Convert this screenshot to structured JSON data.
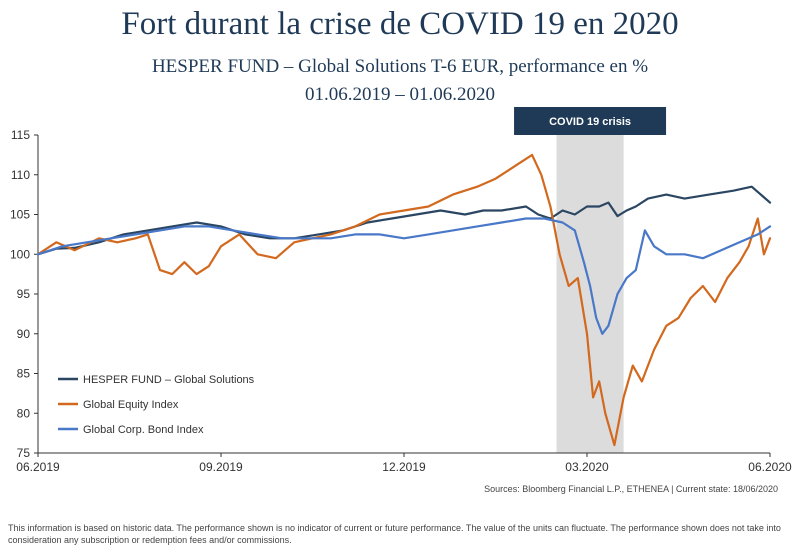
{
  "header": {
    "title": "Fort durant la crise de COVID 19 en 2020",
    "subtitle": "HESPER FUND – Global Solutions T-6 EUR, performance en %",
    "date_range": "01.06.2019 – 01.06.2020"
  },
  "footer": {
    "sources": "Sources: Bloomberg Financial L.P., ETHENEA | Current state: 18/06/2020",
    "disclaimer": "This information is based on historic data. The performance shown is no indicator of current or future performance. The value of the units can fluctuate. The performance shown does not take into consideration any subscription or redemption fees and/or commissions."
  },
  "chart_data": {
    "type": "line",
    "x_tick_labels": [
      "06.2019",
      "09.2019",
      "12.2019",
      "03.2020",
      "06.2020"
    ],
    "xlim": [
      0,
      12
    ],
    "ylim": [
      75,
      115
    ],
    "y_ticks": [
      75,
      80,
      85,
      90,
      95,
      100,
      105,
      110,
      115
    ],
    "grid": false,
    "legend_position": "bottom-left",
    "annotation": {
      "label": "COVID 19 crisis",
      "x_start": 8.5,
      "x_end": 9.6,
      "color": "#1f3a57",
      "band_color": "#dcdcdc"
    },
    "series": [
      {
        "name": "HESPER FUND – Global Solutions",
        "color": "#2a4662",
        "x": [
          0,
          0.3,
          0.6,
          1.0,
          1.4,
          1.8,
          2.2,
          2.6,
          3.0,
          3.4,
          3.8,
          4.2,
          4.6,
          5.0,
          5.4,
          5.8,
          6.2,
          6.6,
          7.0,
          7.3,
          7.6,
          8.0,
          8.2,
          8.4,
          8.6,
          8.8,
          9.0,
          9.2,
          9.35,
          9.5,
          9.65,
          9.8,
          10.0,
          10.3,
          10.6,
          11.0,
          11.4,
          11.7,
          11.85,
          12.0
        ],
        "values": [
          100,
          100.7,
          100.8,
          101.5,
          102.5,
          103.0,
          103.5,
          104.0,
          103.5,
          102.5,
          102.0,
          102.0,
          102.5,
          103.0,
          104.0,
          104.5,
          105.0,
          105.5,
          105.0,
          105.5,
          105.5,
          106.0,
          105.0,
          104.5,
          105.5,
          105.0,
          106.0,
          106.0,
          106.5,
          104.8,
          105.5,
          106.0,
          107.0,
          107.5,
          107.0,
          107.5,
          108.0,
          108.5,
          107.5,
          106.5
        ]
      },
      {
        "name": "Global Equity Index",
        "color": "#d2691e",
        "x": [
          0,
          0.3,
          0.6,
          1.0,
          1.3,
          1.6,
          1.8,
          2.0,
          2.2,
          2.4,
          2.6,
          2.8,
          3.0,
          3.3,
          3.6,
          3.9,
          4.2,
          4.5,
          4.8,
          5.2,
          5.6,
          6.0,
          6.4,
          6.8,
          7.2,
          7.5,
          7.7,
          7.9,
          8.1,
          8.25,
          8.4,
          8.55,
          8.7,
          8.85,
          9.0,
          9.1,
          9.2,
          9.3,
          9.45,
          9.6,
          9.75,
          9.9,
          10.1,
          10.3,
          10.5,
          10.7,
          10.9,
          11.1,
          11.3,
          11.5,
          11.65,
          11.8,
          11.9,
          12.0
        ],
        "values": [
          100,
          101.5,
          100.5,
          102.0,
          101.5,
          102.0,
          102.5,
          98.0,
          97.5,
          99.0,
          97.5,
          98.5,
          101.0,
          102.5,
          100.0,
          99.5,
          101.5,
          102.0,
          102.5,
          103.5,
          105.0,
          105.5,
          106.0,
          107.5,
          108.5,
          109.5,
          110.5,
          111.5,
          112.5,
          110.0,
          106.0,
          100.0,
          96.0,
          97.0,
          90.0,
          82.0,
          84.0,
          80.0,
          76.0,
          82.0,
          86.0,
          84.0,
          88.0,
          91.0,
          92.0,
          94.5,
          96.0,
          94.0,
          97.0,
          99.0,
          101.0,
          104.5,
          100.0,
          102.0
        ]
      },
      {
        "name": "Global Corp. Bond Index",
        "color": "#4a78c8",
        "x": [
          0,
          0.4,
          0.8,
          1.2,
          1.6,
          2.0,
          2.4,
          2.8,
          3.2,
          3.6,
          4.0,
          4.4,
          4.8,
          5.2,
          5.6,
          6.0,
          6.4,
          6.8,
          7.2,
          7.6,
          8.0,
          8.3,
          8.6,
          8.8,
          8.95,
          9.05,
          9.15,
          9.25,
          9.35,
          9.5,
          9.65,
          9.8,
          9.95,
          10.1,
          10.3,
          10.6,
          10.9,
          11.2,
          11.5,
          11.8,
          12.0
        ],
        "values": [
          100,
          101.0,
          101.5,
          102.0,
          102.5,
          103.0,
          103.5,
          103.5,
          103.0,
          102.5,
          102.0,
          102.0,
          102.0,
          102.5,
          102.5,
          102.0,
          102.5,
          103.0,
          103.5,
          104.0,
          104.5,
          104.5,
          104.0,
          103.0,
          99.0,
          96.0,
          92.0,
          90.0,
          91.0,
          95.0,
          97.0,
          98.0,
          103.0,
          101.0,
          100.0,
          100.0,
          99.5,
          100.5,
          101.5,
          102.5,
          103.5
        ]
      }
    ]
  }
}
